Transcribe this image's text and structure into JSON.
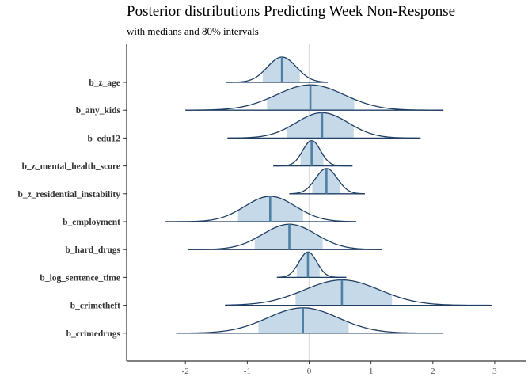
{
  "title": "Posterior distributions Predicting Week Non-Response",
  "subtitle": "with medians and 80% intervals",
  "chart_data": {
    "type": "ridgeline",
    "xlim": [
      -2.95,
      3.5
    ],
    "xticks": [
      -2,
      -1,
      0,
      1,
      2,
      3
    ],
    "reference_line": 0,
    "grid": false,
    "colors": {
      "fill": "#c6d9e8",
      "outline": "#1f3e63",
      "median": "#4e7fa4",
      "zero": "#dedede"
    },
    "parameters": [
      {
        "name": "b_z_age",
        "median": -0.44,
        "interval": [
          -0.75,
          -0.15
        ],
        "range": [
          -1.35,
          0.3
        ]
      },
      {
        "name": "b_any_kids",
        "median": 0.02,
        "interval": [
          -0.68,
          0.73
        ],
        "range": [
          -2.0,
          2.17
        ]
      },
      {
        "name": "b_edu12",
        "median": 0.21,
        "interval": [
          -0.36,
          0.72
        ],
        "range": [
          -1.32,
          1.8
        ]
      },
      {
        "name": "b_z_mental_health_score",
        "median": 0.04,
        "interval": [
          -0.14,
          0.23
        ],
        "range": [
          -0.58,
          0.7
        ]
      },
      {
        "name": "b_z_residential_instability",
        "median": 0.28,
        "interval": [
          0.05,
          0.5
        ],
        "range": [
          -0.32,
          0.9
        ]
      },
      {
        "name": "b_employment",
        "median": -0.63,
        "interval": [
          -1.15,
          -0.1
        ],
        "range": [
          -2.33,
          0.76
        ]
      },
      {
        "name": "b_hard_drugs",
        "median": -0.32,
        "interval": [
          -0.88,
          0.22
        ],
        "range": [
          -1.95,
          1.17
        ]
      },
      {
        "name": "b_log_sentence_time",
        "median": -0.02,
        "interval": [
          -0.2,
          0.17
        ],
        "range": [
          -0.52,
          0.6
        ]
      },
      {
        "name": "b_crimetheft",
        "median": 0.53,
        "interval": [
          -0.22,
          1.34
        ],
        "range": [
          -1.36,
          2.95
        ]
      },
      {
        "name": "b_crimedrugs",
        "median": -0.1,
        "interval": [
          -0.82,
          0.64
        ],
        "range": [
          -2.15,
          2.17
        ]
      }
    ]
  }
}
